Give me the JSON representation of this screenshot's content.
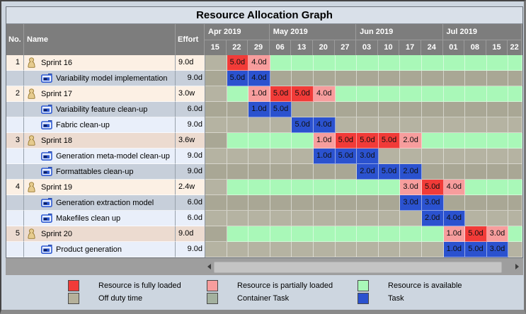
{
  "window": {
    "title": "Resource Allocation Graph"
  },
  "table": {
    "columns": {
      "no": "No.",
      "name": "Name",
      "effort": "Effort"
    },
    "months": [
      {
        "label": "Apr 2019",
        "dates": [
          "15",
          "22",
          "29"
        ]
      },
      {
        "label": "May 2019",
        "dates": [
          "06",
          "13",
          "20",
          "27"
        ]
      },
      {
        "label": "Jun 2019",
        "dates": [
          "03",
          "10",
          "17",
          "24"
        ]
      },
      {
        "label": "Jul 2019",
        "dates": [
          "01",
          "08",
          "15",
          "22"
        ]
      }
    ],
    "rows": [
      {
        "no": "1",
        "type": "sprint",
        "icon": "resource-icon",
        "name": "Sprint 16",
        "effort": "9.0d",
        "cells": [
          {
            "state": "off"
          },
          {
            "state": "full",
            "value": "5.0d"
          },
          {
            "state": "part",
            "value": "4.0d"
          },
          {
            "state": "avail"
          },
          {
            "state": "avail"
          },
          {
            "state": "avail"
          },
          {
            "state": "avail"
          },
          {
            "state": "avail"
          },
          {
            "state": "avail"
          },
          {
            "state": "avail"
          },
          {
            "state": "avail"
          },
          {
            "state": "avail"
          },
          {
            "state": "avail"
          },
          {
            "state": "avail"
          },
          {
            "state": "avail"
          }
        ]
      },
      {
        "no": "",
        "type": "task",
        "icon": "task-icon",
        "name": "Variability model implementation",
        "effort": "9.0d",
        "cells": [
          {
            "state": "off"
          },
          {
            "state": "task",
            "value": "5.0d"
          },
          {
            "state": "task",
            "value": "4.0d"
          },
          {
            "state": "off"
          },
          {
            "state": "off"
          },
          {
            "state": "off"
          },
          {
            "state": "off"
          },
          {
            "state": "off"
          },
          {
            "state": "off"
          },
          {
            "state": "off"
          },
          {
            "state": "off"
          },
          {
            "state": "off"
          },
          {
            "state": "off"
          },
          {
            "state": "off"
          },
          {
            "state": "off"
          }
        ]
      },
      {
        "no": "2",
        "type": "sprint",
        "icon": "resource-icon",
        "name": "Sprint 17",
        "effort": "3.0w",
        "cells": [
          {
            "state": "off"
          },
          {
            "state": "avail"
          },
          {
            "state": "part",
            "value": "1.0d"
          },
          {
            "state": "full",
            "value": "5.0d"
          },
          {
            "state": "full",
            "value": "5.0d"
          },
          {
            "state": "part",
            "value": "4.0d"
          },
          {
            "state": "avail"
          },
          {
            "state": "avail"
          },
          {
            "state": "avail"
          },
          {
            "state": "avail"
          },
          {
            "state": "avail"
          },
          {
            "state": "avail"
          },
          {
            "state": "avail"
          },
          {
            "state": "avail"
          },
          {
            "state": "avail"
          }
        ]
      },
      {
        "no": "",
        "type": "task",
        "icon": "task-icon",
        "name": "Variability feature clean-up",
        "effort": "6.0d",
        "cells": [
          {
            "state": "off"
          },
          {
            "state": "off"
          },
          {
            "state": "task",
            "value": "1.0d"
          },
          {
            "state": "task",
            "value": "5.0d"
          },
          {
            "state": "off"
          },
          {
            "state": "off"
          },
          {
            "state": "off"
          },
          {
            "state": "off"
          },
          {
            "state": "off"
          },
          {
            "state": "off"
          },
          {
            "state": "off"
          },
          {
            "state": "off"
          },
          {
            "state": "off"
          },
          {
            "state": "off"
          },
          {
            "state": "off"
          }
        ]
      },
      {
        "no": "",
        "type": "task",
        "icon": "task-icon",
        "name": "Fabric clean-up",
        "effort": "9.0d",
        "cells": [
          {
            "state": "off"
          },
          {
            "state": "off"
          },
          {
            "state": "off"
          },
          {
            "state": "off"
          },
          {
            "state": "task",
            "value": "5.0d"
          },
          {
            "state": "task",
            "value": "4.0d"
          },
          {
            "state": "off"
          },
          {
            "state": "off"
          },
          {
            "state": "off"
          },
          {
            "state": "off"
          },
          {
            "state": "off"
          },
          {
            "state": "off"
          },
          {
            "state": "off"
          },
          {
            "state": "off"
          },
          {
            "state": "off"
          }
        ]
      },
      {
        "no": "3",
        "type": "sprint",
        "icon": "resource-icon",
        "name": "Sprint 18",
        "effort": "3.6w",
        "cells": [
          {
            "state": "off"
          },
          {
            "state": "avail"
          },
          {
            "state": "avail"
          },
          {
            "state": "avail"
          },
          {
            "state": "avail"
          },
          {
            "state": "part",
            "value": "1.0d"
          },
          {
            "state": "full",
            "value": "5.0d"
          },
          {
            "state": "full",
            "value": "5.0d"
          },
          {
            "state": "full",
            "value": "5.0d"
          },
          {
            "state": "part",
            "value": "2.0d"
          },
          {
            "state": "avail"
          },
          {
            "state": "avail"
          },
          {
            "state": "avail"
          },
          {
            "state": "avail"
          },
          {
            "state": "avail"
          }
        ]
      },
      {
        "no": "",
        "type": "task",
        "icon": "task-icon",
        "name": "Generation meta-model clean-up",
        "effort": "9.0d",
        "cells": [
          {
            "state": "off"
          },
          {
            "state": "off"
          },
          {
            "state": "off"
          },
          {
            "state": "off"
          },
          {
            "state": "off"
          },
          {
            "state": "task",
            "value": "1.0d"
          },
          {
            "state": "task",
            "value": "5.0d"
          },
          {
            "state": "task",
            "value": "3.0d"
          },
          {
            "state": "off"
          },
          {
            "state": "off"
          },
          {
            "state": "off"
          },
          {
            "state": "off"
          },
          {
            "state": "off"
          },
          {
            "state": "off"
          },
          {
            "state": "off"
          }
        ]
      },
      {
        "no": "",
        "type": "task",
        "icon": "task-icon",
        "name": "Formattables clean-up",
        "effort": "9.0d",
        "cells": [
          {
            "state": "off"
          },
          {
            "state": "off"
          },
          {
            "state": "off"
          },
          {
            "state": "off"
          },
          {
            "state": "off"
          },
          {
            "state": "off"
          },
          {
            "state": "off"
          },
          {
            "state": "task",
            "value": "2.0d"
          },
          {
            "state": "task",
            "value": "5.0d"
          },
          {
            "state": "task",
            "value": "2.0d"
          },
          {
            "state": "off"
          },
          {
            "state": "off"
          },
          {
            "state": "off"
          },
          {
            "state": "off"
          },
          {
            "state": "off"
          }
        ]
      },
      {
        "no": "4",
        "type": "sprint",
        "icon": "resource-icon",
        "name": "Sprint 19",
        "effort": "2.4w",
        "cells": [
          {
            "state": "off"
          },
          {
            "state": "avail"
          },
          {
            "state": "avail"
          },
          {
            "state": "avail"
          },
          {
            "state": "avail"
          },
          {
            "state": "avail"
          },
          {
            "state": "avail"
          },
          {
            "state": "avail"
          },
          {
            "state": "avail"
          },
          {
            "state": "part",
            "value": "3.0d"
          },
          {
            "state": "full",
            "value": "5.0d"
          },
          {
            "state": "part",
            "value": "4.0d"
          },
          {
            "state": "avail"
          },
          {
            "state": "avail"
          },
          {
            "state": "avail"
          }
        ]
      },
      {
        "no": "",
        "type": "task",
        "icon": "task-icon",
        "name": "Generation extraction model",
        "effort": "6.0d",
        "cells": [
          {
            "state": "off"
          },
          {
            "state": "off"
          },
          {
            "state": "off"
          },
          {
            "state": "off"
          },
          {
            "state": "off"
          },
          {
            "state": "off"
          },
          {
            "state": "off"
          },
          {
            "state": "off"
          },
          {
            "state": "off"
          },
          {
            "state": "task",
            "value": "3.0d"
          },
          {
            "state": "task",
            "value": "3.0d"
          },
          {
            "state": "off"
          },
          {
            "state": "off"
          },
          {
            "state": "off"
          },
          {
            "state": "off"
          }
        ]
      },
      {
        "no": "",
        "type": "task",
        "icon": "task-icon",
        "name": "Makefiles clean up",
        "effort": "6.0d",
        "cells": [
          {
            "state": "off"
          },
          {
            "state": "off"
          },
          {
            "state": "off"
          },
          {
            "state": "off"
          },
          {
            "state": "off"
          },
          {
            "state": "off"
          },
          {
            "state": "off"
          },
          {
            "state": "off"
          },
          {
            "state": "off"
          },
          {
            "state": "off"
          },
          {
            "state": "task",
            "value": "2.0d"
          },
          {
            "state": "task",
            "value": "4.0d"
          },
          {
            "state": "off"
          },
          {
            "state": "off"
          },
          {
            "state": "off"
          }
        ]
      },
      {
        "no": "5",
        "type": "sprint",
        "icon": "resource-icon",
        "name": "Sprint 20",
        "effort": "9.0d",
        "cells": [
          {
            "state": "off"
          },
          {
            "state": "avail"
          },
          {
            "state": "avail"
          },
          {
            "state": "avail"
          },
          {
            "state": "avail"
          },
          {
            "state": "avail"
          },
          {
            "state": "avail"
          },
          {
            "state": "avail"
          },
          {
            "state": "avail"
          },
          {
            "state": "avail"
          },
          {
            "state": "avail"
          },
          {
            "state": "part",
            "value": "1.0d"
          },
          {
            "state": "full",
            "value": "5.0d"
          },
          {
            "state": "part",
            "value": "3.0d"
          },
          {
            "state": "avail"
          }
        ]
      },
      {
        "no": "",
        "type": "task",
        "icon": "task-icon",
        "name": "Product generation",
        "effort": "9.0d",
        "cells": [
          {
            "state": "off"
          },
          {
            "state": "off"
          },
          {
            "state": "off"
          },
          {
            "state": "off"
          },
          {
            "state": "off"
          },
          {
            "state": "off"
          },
          {
            "state": "off"
          },
          {
            "state": "off"
          },
          {
            "state": "off"
          },
          {
            "state": "off"
          },
          {
            "state": "off"
          },
          {
            "state": "task",
            "value": "1.0d"
          },
          {
            "state": "task",
            "value": "5.0d"
          },
          {
            "state": "task",
            "value": "3.0d"
          },
          {
            "state": "off"
          }
        ]
      }
    ]
  },
  "legend": {
    "items": [
      {
        "label": "Resource is fully loaded",
        "color": "#f13b38"
      },
      {
        "label": "Resource is partially loaded",
        "color": "#f79d9d"
      },
      {
        "label": "Resource is available",
        "color": "#a9f8b8"
      },
      {
        "label": "Off duty time",
        "color": "#b5b19b"
      },
      {
        "label": "Container Task",
        "color": "#a3b19f"
      },
      {
        "label": "Task",
        "color": "#2b52cf"
      }
    ]
  },
  "colors": {
    "fully_loaded": "#f13b38",
    "partially_loaded": "#f79d9d",
    "available": "#a9f8b8",
    "task": "#2b52cf",
    "off_duty_odd": "#b5b3a2",
    "off_duty_even": "#a9a795",
    "header_gray": "#7d7d7d",
    "title_background": "#d9e0e9",
    "window_background": "#cdd6e0"
  }
}
